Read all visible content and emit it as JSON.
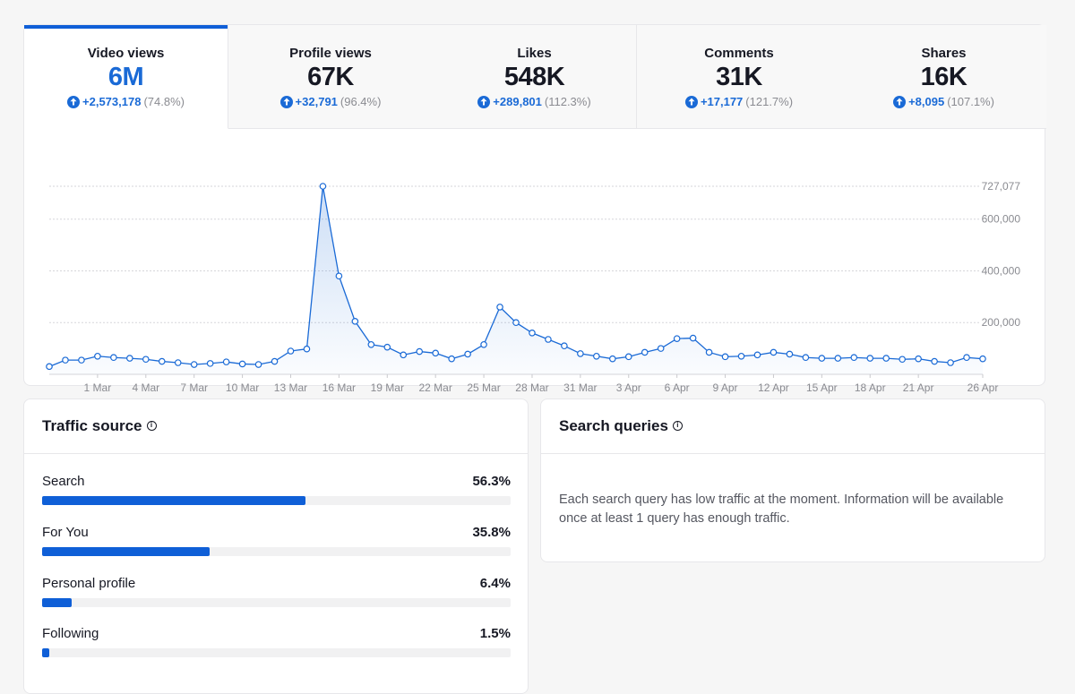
{
  "tabs": [
    {
      "label": "Video views",
      "value": "6M",
      "delta": "+2,573,178",
      "pct": "(74.8%)",
      "active": true
    },
    {
      "label": "Profile views",
      "value": "67K",
      "delta": "+32,791",
      "pct": "(96.4%)",
      "active": false
    },
    {
      "label": "Likes",
      "value": "548K",
      "delta": "+289,801",
      "pct": "(112.3%)",
      "active": false
    },
    {
      "label": "Comments",
      "value": "31K",
      "delta": "+17,177",
      "pct": "(121.7%)",
      "active": false
    },
    {
      "label": "Shares",
      "value": "16K",
      "delta": "+8,095",
      "pct": "(107.1%)",
      "active": false
    }
  ],
  "colors": {
    "accent": "#1a6ad6",
    "bar": "#0f5fd7",
    "muted": "#8a8b91"
  },
  "chart_data": {
    "type": "area",
    "title": "",
    "xlabel": "",
    "ylabel": "",
    "x_start": "26 Feb",
    "x_tick_labels": [
      "1 Mar",
      "4 Mar",
      "7 Mar",
      "10 Mar",
      "13 Mar",
      "16 Mar",
      "19 Mar",
      "22 Mar",
      "25 Mar",
      "28 Mar",
      "31 Mar",
      "3 Apr",
      "6 Apr",
      "9 Apr",
      "12 Apr",
      "15 Apr",
      "18 Apr",
      "21 Apr",
      "26 Apr"
    ],
    "y_tick_labels": [
      "200,000",
      "400,000",
      "600,000",
      "727,077"
    ],
    "y_ticks": [
      200000,
      400000,
      600000,
      727077
    ],
    "ylim": [
      0,
      727077
    ],
    "grid": true,
    "series": [
      {
        "values": [
          30000,
          55000,
          55000,
          70000,
          65000,
          62000,
          58000,
          50000,
          45000,
          38000,
          42000,
          48000,
          40000,
          38000,
          50000,
          90000,
          98000,
          727077,
          380000,
          205000,
          115000,
          105000,
          75000,
          88000,
          82000,
          60000,
          78000,
          115000,
          260000,
          200000,
          160000,
          135000,
          110000,
          80000,
          70000,
          60000,
          68000,
          85000,
          100000,
          138000,
          140000,
          85000,
          68000,
          70000,
          75000,
          85000,
          78000,
          65000,
          62000,
          62000,
          65000,
          62000,
          62000,
          58000,
          60000,
          50000,
          45000,
          65000,
          60000
        ]
      }
    ]
  },
  "traffic": {
    "title": "Traffic source",
    "items": [
      {
        "name": "Search",
        "pct_label": "56.3%",
        "pct": 56.3
      },
      {
        "name": "For You",
        "pct_label": "35.8%",
        "pct": 35.8
      },
      {
        "name": "Personal profile",
        "pct_label": "6.4%",
        "pct": 6.4
      },
      {
        "name": "Following",
        "pct_label": "1.5%",
        "pct": 1.5
      }
    ]
  },
  "queries": {
    "title": "Search queries",
    "message": "Each search query has low traffic at the moment. Information will be available once at least 1 query has enough traffic."
  }
}
